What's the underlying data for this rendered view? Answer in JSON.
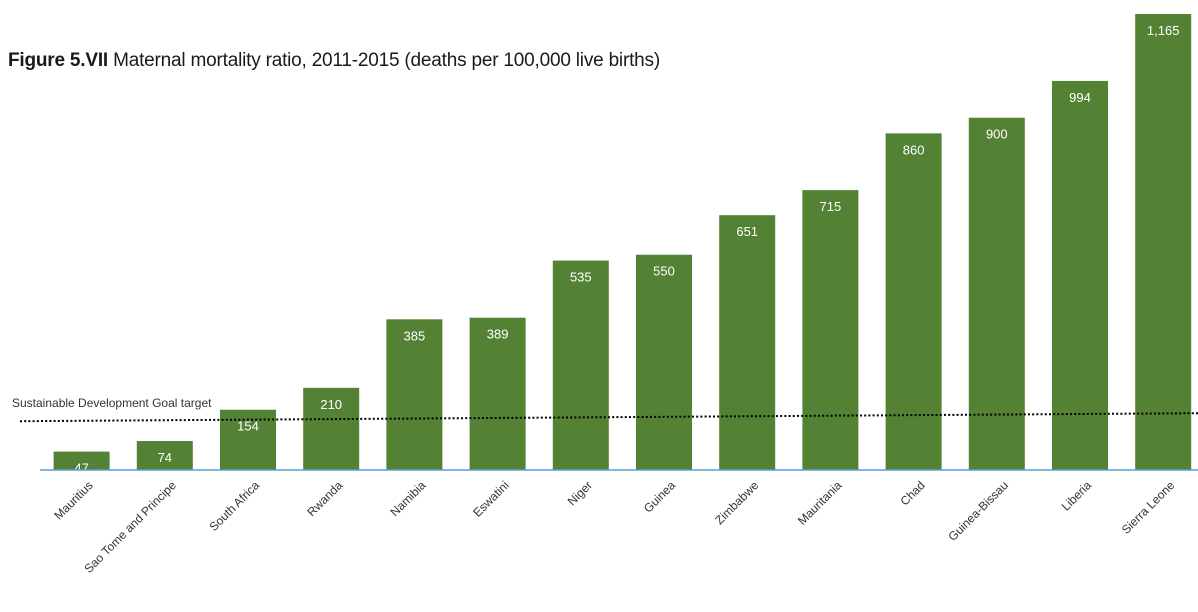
{
  "title": {
    "figure_label": "Figure 5.VII",
    "text": "Maternal mortality ratio, 2011-2015 (deaths per 100,000 live births)"
  },
  "chart_data": {
    "type": "bar",
    "categories": [
      "Mauritius",
      "Sao Tome and Principe",
      "South Africa",
      "Rwanda",
      "Namibia",
      "Eswatini",
      "Niger",
      "Guinea",
      "Zimbabwe",
      "Mauritania",
      "Chad",
      "Guinea-Bissau",
      "Liberia",
      "Sierra Leone"
    ],
    "values": [
      47,
      74,
      154,
      210,
      385,
      389,
      535,
      550,
      651,
      715,
      860,
      900,
      994,
      1165
    ],
    "value_labels": [
      "47",
      "74",
      "154",
      "210",
      "385",
      "389",
      "535",
      "550",
      "651",
      "715",
      "860",
      "900",
      "994",
      "1,165"
    ],
    "title": "Maternal mortality ratio, 2011-2015 (deaths per 100,000 live births)",
    "xlabel": "",
    "ylabel": "",
    "ylim": [
      0,
      1165
    ],
    "grid": false,
    "reference_line": {
      "label": "Sustainable Development Goal target",
      "value": 140,
      "style": "dotted"
    },
    "colors": {
      "bar": "#548235",
      "baseline": "#5b9bd5",
      "target_line": "#000000"
    }
  }
}
